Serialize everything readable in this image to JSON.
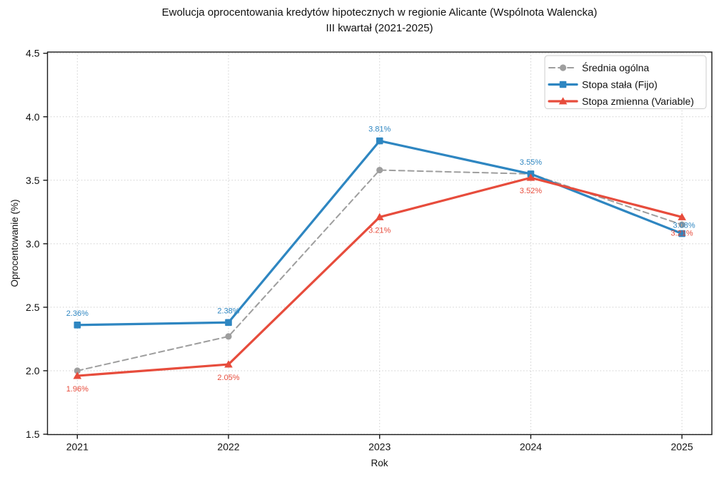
{
  "page": {
    "background": "#ffffff",
    "text_color": "#111111"
  },
  "chart_data": {
    "type": "line",
    "title": "Ewolucja oprocentowania kredytów hipotecznych w regionie Alicante (Wspólnota Walencka)",
    "subtitle": "III kwartał (2021-2025)",
    "xlabel": "Rok",
    "ylabel": "Oprocentowanie (%)",
    "ylim": [
      1.5,
      4.5
    ],
    "y_ticks": [
      "1.5",
      "2.0",
      "2.5",
      "3.0",
      "3.5",
      "4.0",
      "4.5"
    ],
    "categories": [
      "2021",
      "2022",
      "2023",
      "2024",
      "2025"
    ],
    "grid": "dotted",
    "grid_color": "#cfcfcf",
    "spine_color": "#1a1a1a",
    "legend_position": "upper-right",
    "series": [
      {
        "name": "Średnia ogólna",
        "slug": "srednia-ogolna",
        "color": "#9e9e9e",
        "marker": "circle",
        "line_style": "dashed",
        "values": [
          2.0,
          2.27,
          3.58,
          3.55,
          3.15
        ],
        "point_labels": [
          "",
          "",
          "",
          "",
          ""
        ]
      },
      {
        "name": "Stopa stała (Fijo)",
        "slug": "stopa-stala-fijo",
        "color": "#2e86c1",
        "marker": "square",
        "line_style": "solid",
        "values": [
          2.36,
          2.38,
          3.81,
          3.55,
          3.08
        ],
        "point_labels": [
          "2.36%",
          "2.38%",
          "3.81%",
          "3.55%",
          "3.08%"
        ]
      },
      {
        "name": "Stopa zmienna (Variable)",
        "slug": "stopa-zmienna-variable",
        "color": "#e74c3c",
        "marker": "triangle",
        "line_style": "solid",
        "values": [
          1.96,
          2.05,
          3.21,
          3.52,
          3.21
        ],
        "point_labels": [
          "1.96%",
          "2.05%",
          "3.21%",
          "3.52%",
          "3.21%"
        ]
      }
    ]
  }
}
